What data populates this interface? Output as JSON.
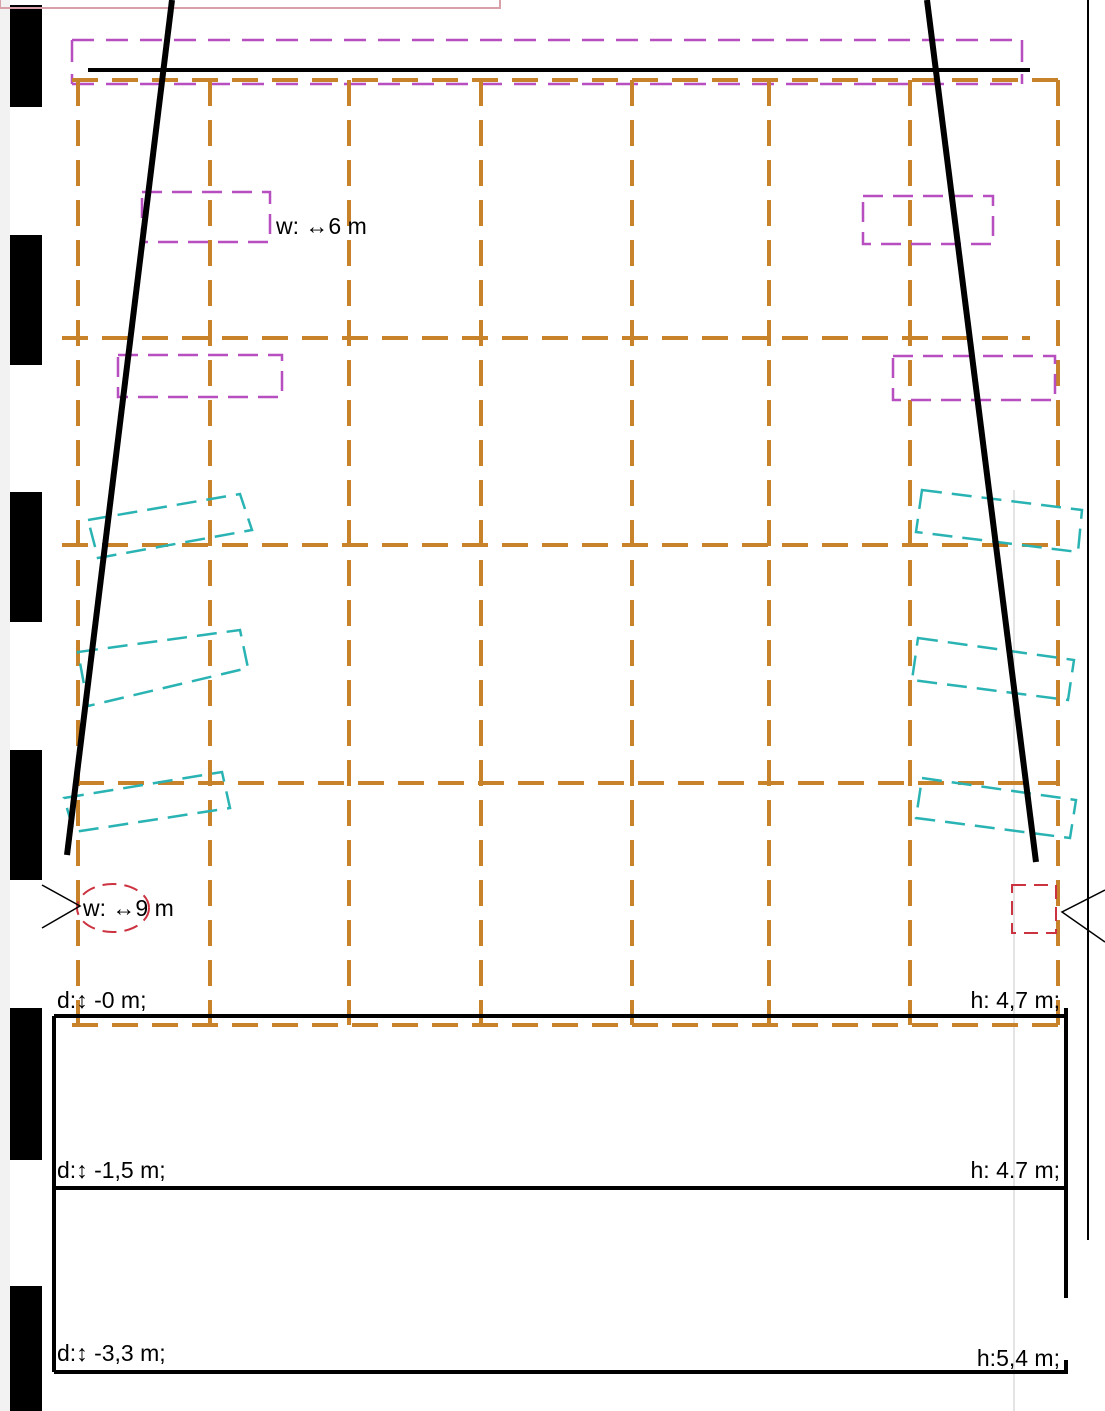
{
  "labels": {
    "width_top": "w: ↔6 m",
    "width_bottom": "w: ↔9 m",
    "depth_0": "d:↕ -0 m;",
    "depth_1": "d:↕ -1,5 m;",
    "depth_2": "d:↕ -3,3 m;",
    "height_0": "h: 4,7 m;",
    "height_1": "h: 4.7 m;",
    "height_2": "h:5,4 m;"
  },
  "colors": {
    "grid": "#c8822a",
    "magenta": "#b84fc0",
    "cyan": "#2ab3b3",
    "red": "#cc3340",
    "line": "#000000"
  }
}
